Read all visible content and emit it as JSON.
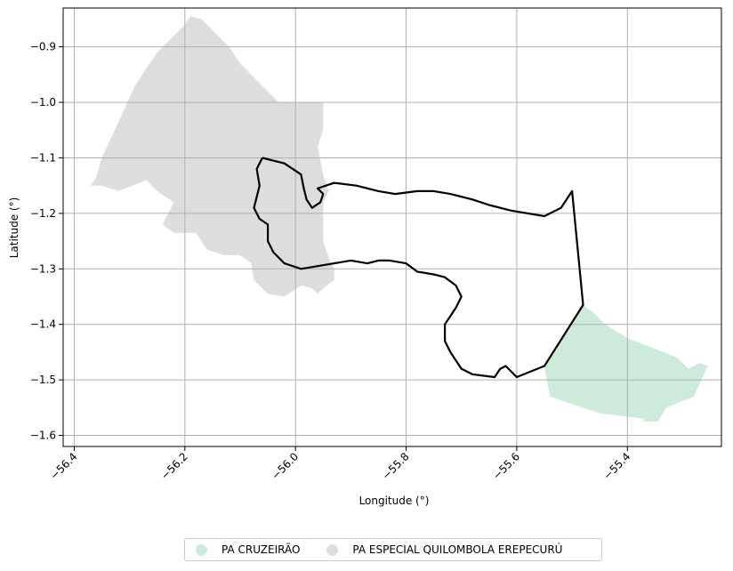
{
  "chart_data": {
    "type": "map",
    "xlabel": "Longitude (°)",
    "ylabel": "Latitude (°)",
    "xlim": [
      -56.42,
      -55.23
    ],
    "ylim": [
      -1.62,
      -0.83
    ],
    "xticks": [
      -56.4,
      -56.2,
      -56.0,
      -55.8,
      -55.6,
      -55.4
    ],
    "xtick_labels": [
      "−56.4",
      "−56.2",
      "−56.0",
      "−55.8",
      "−55.6",
      "−55.4"
    ],
    "yticks": [
      -0.9,
      -1.0,
      -1.1,
      -1.2,
      -1.3,
      -1.4,
      -1.5,
      -1.6
    ],
    "ytick_labels": [
      "−0.9",
      "−1.0",
      "−1.1",
      "−1.2",
      "−1.3",
      "−1.4",
      "−1.5",
      "−1.6"
    ],
    "grid": true,
    "legend_position": "bottom-center",
    "regions": [
      {
        "name": "PA CRUZEIRÃO",
        "color": "#cdeadb",
        "polygon": [
          [
            -55.55,
            -1.475
          ],
          [
            -55.48,
            -1.365
          ],
          [
            -55.46,
            -1.38
          ],
          [
            -55.44,
            -1.4
          ],
          [
            -55.4,
            -1.425
          ],
          [
            -55.36,
            -1.44
          ],
          [
            -55.31,
            -1.46
          ],
          [
            -55.29,
            -1.48
          ],
          [
            -55.27,
            -1.47
          ],
          [
            -55.255,
            -1.475
          ],
          [
            -55.28,
            -1.53
          ],
          [
            -55.33,
            -1.55
          ],
          [
            -55.345,
            -1.575
          ],
          [
            -55.37,
            -1.575
          ],
          [
            -55.37,
            -1.57
          ],
          [
            -55.45,
            -1.56
          ],
          [
            -55.54,
            -1.53
          ],
          [
            -55.55,
            -1.475
          ]
        ]
      },
      {
        "name": "PA ESPECIAL QUILOMBOLA EREPECURÚ",
        "color": "#dddddd",
        "polygon": [
          [
            -56.17,
            -0.85
          ],
          [
            -56.19,
            -0.845
          ],
          [
            -56.2,
            -0.86
          ],
          [
            -56.25,
            -0.91
          ],
          [
            -56.29,
            -0.97
          ],
          [
            -56.32,
            -1.035
          ],
          [
            -56.35,
            -1.1
          ],
          [
            -56.36,
            -1.135
          ],
          [
            -56.37,
            -1.15
          ],
          [
            -56.35,
            -1.15
          ],
          [
            -56.32,
            -1.16
          ],
          [
            -56.27,
            -1.14
          ],
          [
            -56.25,
            -1.16
          ],
          [
            -56.22,
            -1.18
          ],
          [
            -56.24,
            -1.22
          ],
          [
            -56.22,
            -1.235
          ],
          [
            -56.18,
            -1.235
          ],
          [
            -56.16,
            -1.265
          ],
          [
            -56.13,
            -1.275
          ],
          [
            -56.1,
            -1.275
          ],
          [
            -56.08,
            -1.29
          ],
          [
            -56.075,
            -1.32
          ],
          [
            -56.05,
            -1.345
          ],
          [
            -56.02,
            -1.35
          ],
          [
            -55.99,
            -1.33
          ],
          [
            -55.97,
            -1.335
          ],
          [
            -55.96,
            -1.345
          ],
          [
            -55.95,
            -1.335
          ],
          [
            -55.93,
            -1.32
          ],
          [
            -55.93,
            -1.3
          ],
          [
            -55.94,
            -1.28
          ],
          [
            -55.95,
            -1.25
          ],
          [
            -55.95,
            -1.21
          ],
          [
            -55.95,
            -1.18
          ],
          [
            -55.94,
            -1.16
          ],
          [
            -55.95,
            -1.13
          ],
          [
            -55.96,
            -1.08
          ],
          [
            -55.95,
            -1.05
          ],
          [
            -55.95,
            -1.0
          ],
          [
            -56.03,
            -1.0
          ],
          [
            -56.07,
            -0.96
          ],
          [
            -56.1,
            -0.93
          ],
          [
            -56.12,
            -0.9
          ],
          [
            -56.15,
            -0.87
          ],
          [
            -56.17,
            -0.85
          ]
        ]
      }
    ],
    "boundary": {
      "color": "#000000",
      "polyline": [
        [
          -56.06,
          -1.1
        ],
        [
          -56.07,
          -1.12
        ],
        [
          -56.065,
          -1.15
        ],
        [
          -56.075,
          -1.19
        ],
        [
          -56.065,
          -1.21
        ],
        [
          -56.05,
          -1.22
        ],
        [
          -56.05,
          -1.25
        ],
        [
          -56.04,
          -1.27
        ],
        [
          -56.02,
          -1.29
        ],
        [
          -55.99,
          -1.3
        ],
        [
          -55.96,
          -1.295
        ],
        [
          -55.93,
          -1.29
        ],
        [
          -55.9,
          -1.285
        ],
        [
          -55.87,
          -1.29
        ],
        [
          -55.85,
          -1.285
        ],
        [
          -55.83,
          -1.285
        ],
        [
          -55.8,
          -1.29
        ],
        [
          -55.78,
          -1.305
        ],
        [
          -55.75,
          -1.31
        ],
        [
          -55.73,
          -1.315
        ],
        [
          -55.71,
          -1.33
        ],
        [
          -55.7,
          -1.35
        ],
        [
          -55.71,
          -1.37
        ],
        [
          -55.73,
          -1.4
        ],
        [
          -55.73,
          -1.43
        ],
        [
          -55.72,
          -1.45
        ],
        [
          -55.7,
          -1.48
        ],
        [
          -55.68,
          -1.49
        ],
        [
          -55.64,
          -1.495
        ],
        [
          -55.63,
          -1.48
        ],
        [
          -55.62,
          -1.475
        ],
        [
          -55.6,
          -1.495
        ],
        [
          -55.55,
          -1.475
        ],
        [
          -55.48,
          -1.365
        ],
        [
          -55.5,
          -1.16
        ],
        [
          -55.52,
          -1.19
        ],
        [
          -55.55,
          -1.205
        ],
        [
          -55.58,
          -1.2
        ],
        [
          -55.61,
          -1.195
        ],
        [
          -55.65,
          -1.185
        ],
        [
          -55.68,
          -1.175
        ],
        [
          -55.72,
          -1.165
        ],
        [
          -55.75,
          -1.16
        ],
        [
          -55.78,
          -1.16
        ],
        [
          -55.82,
          -1.165
        ],
        [
          -55.85,
          -1.16
        ],
        [
          -55.89,
          -1.15
        ],
        [
          -55.93,
          -1.145
        ],
        [
          -55.96,
          -1.155
        ],
        [
          -55.95,
          -1.165
        ],
        [
          -55.955,
          -1.18
        ],
        [
          -55.97,
          -1.19
        ],
        [
          -55.98,
          -1.175
        ],
        [
          -55.985,
          -1.155
        ],
        [
          -55.99,
          -1.13
        ],
        [
          -56.02,
          -1.11
        ],
        [
          -56.06,
          -1.1
        ]
      ]
    }
  },
  "legend": {
    "items": [
      {
        "label": "PA CRUZEIRÃO",
        "color": "#cdeadb"
      },
      {
        "label": "PA ESPECIAL QUILOMBOLA EREPECURÚ",
        "color": "#dddddd"
      }
    ]
  }
}
